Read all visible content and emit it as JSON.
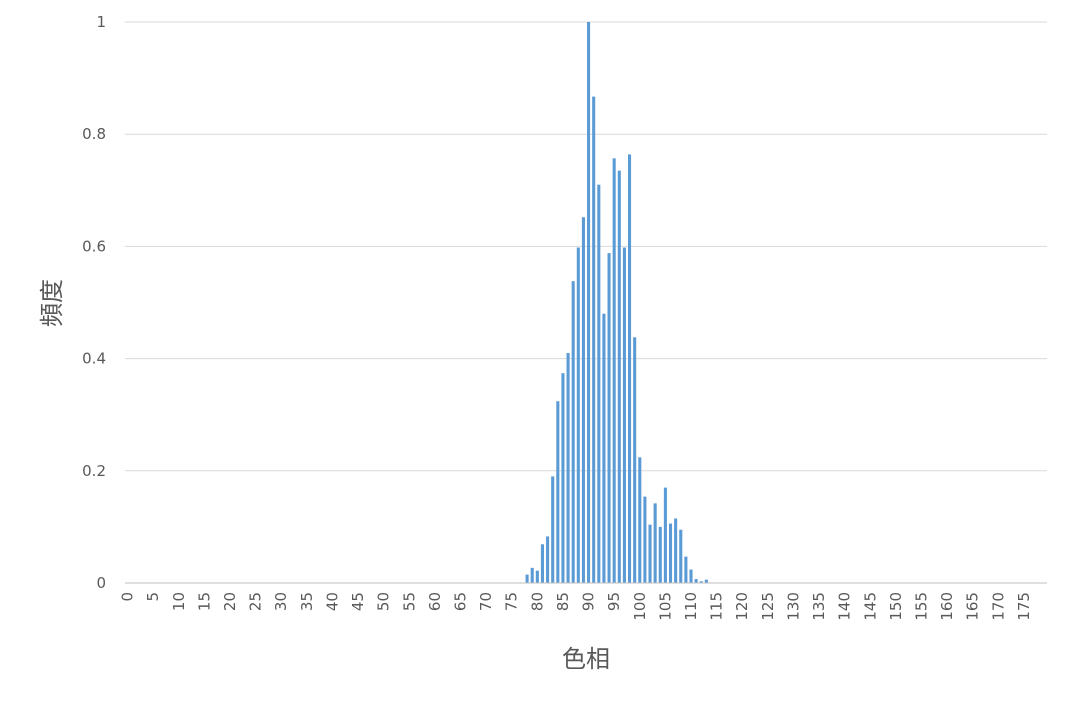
{
  "chart_data": {
    "type": "bar",
    "x_label": "色相",
    "y_label": "頻度",
    "color": "#5b9bd5",
    "grid": true,
    "categories": [
      0,
      null,
      null,
      null,
      null,
      5,
      null,
      null,
      null,
      null,
      10,
      null,
      null,
      null,
      null,
      15,
      null,
      null,
      null,
      null,
      20,
      null,
      null,
      null,
      null,
      25,
      null,
      null,
      null,
      null,
      30,
      null,
      null,
      null,
      null,
      35,
      null,
      null,
      null,
      null,
      40,
      null,
      null,
      null,
      null,
      45,
      null,
      null,
      null,
      null,
      50,
      null,
      null,
      null,
      null,
      55,
      null,
      null,
      null,
      null,
      60,
      null,
      null,
      null,
      null,
      65,
      null,
      null,
      null,
      null,
      70,
      null,
      null,
      null,
      null,
      75,
      null,
      null,
      null,
      null,
      80,
      null,
      null,
      null,
      null,
      85,
      null,
      null,
      null,
      null,
      90,
      null,
      null,
      null,
      null,
      95,
      null,
      null,
      null,
      null,
      100,
      null,
      null,
      null,
      null,
      105,
      null,
      null,
      null,
      null,
      110,
      null,
      null,
      null,
      null,
      115,
      null,
      null,
      null,
      null,
      120,
      null,
      null,
      null,
      null,
      125,
      null,
      null,
      null,
      null,
      130,
      null,
      null,
      null,
      null,
      135,
      null,
      null,
      null,
      null,
      140,
      null,
      null,
      null,
      null,
      145,
      null,
      null,
      null,
      null,
      150,
      null,
      null,
      null,
      null,
      155,
      null,
      null,
      null,
      null,
      160,
      null,
      null,
      null,
      null,
      165,
      null,
      null,
      null,
      null,
      170,
      null,
      null,
      null,
      null,
      175,
      null,
      null,
      null,
      null
    ],
    "values": [
      0,
      0,
      0,
      0,
      0,
      0,
      0,
      0,
      0,
      0,
      0,
      0,
      0,
      0,
      0,
      0,
      0,
      0,
      0,
      0,
      0,
      0,
      0,
      0,
      0,
      0,
      0,
      0,
      0,
      0,
      0,
      0,
      0,
      0,
      0,
      0,
      0,
      0,
      0,
      0,
      0,
      0,
      0,
      0,
      0,
      0,
      0,
      0,
      0,
      0,
      0,
      0,
      0,
      0,
      0,
      0,
      0,
      0,
      0,
      0,
      0,
      0,
      0,
      0,
      0,
      0,
      0,
      0,
      0,
      0,
      0,
      0,
      0,
      0,
      0,
      0,
      0,
      0,
      0.015,
      0.027,
      0.022,
      0.069,
      0.083,
      0.19,
      0.324,
      0.374,
      0.41,
      0.538,
      0.598,
      0.652,
      1,
      0.867,
      0.71,
      0.48,
      0.588,
      0.757,
      0.735,
      0.598,
      0.764,
      0.438,
      0.224,
      0.154,
      0.104,
      0.142,
      0.1,
      0.17,
      0.106,
      0.115,
      0.095,
      0.047,
      0.024,
      0.007,
      0.003,
      0.006,
      0,
      0,
      0,
      0,
      0,
      0,
      0,
      0,
      0,
      0,
      0,
      0,
      0,
      0,
      0,
      0,
      0,
      0,
      0,
      0,
      0,
      0,
      0,
      0,
      0,
      0,
      0,
      0,
      0,
      0,
      0,
      0,
      0,
      0,
      0,
      0,
      0,
      0,
      0,
      0,
      0,
      0,
      0,
      0,
      0,
      0,
      0,
      0,
      0,
      0,
      0,
      0,
      0,
      0,
      0,
      0,
      0,
      0,
      0,
      0,
      0,
      0,
      0,
      0,
      0,
      0
    ],
    "ylim": [
      0,
      1
    ],
    "yticks": [
      0,
      0.2,
      0.4,
      0.6,
      0.8,
      1
    ]
  }
}
